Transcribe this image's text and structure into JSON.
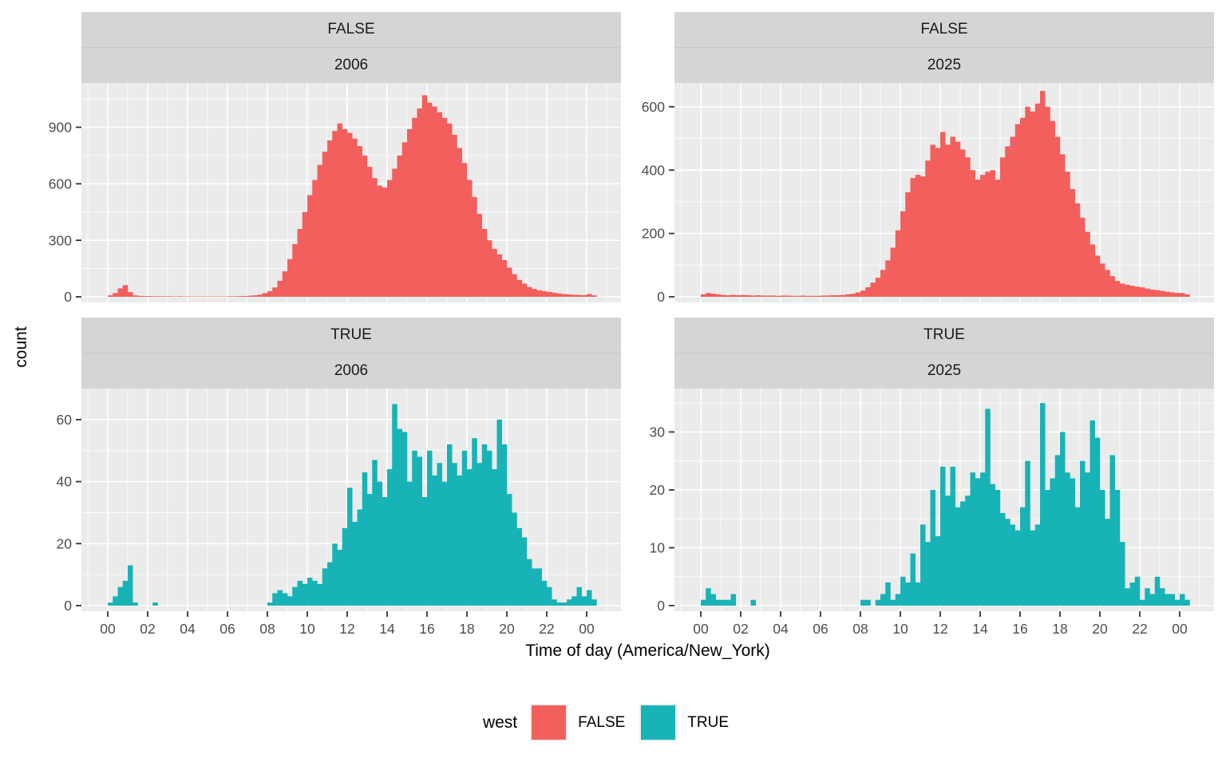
{
  "theme": {
    "panel_bg": "#EBEBEB",
    "strip_bg": "#D5D5D5",
    "grid_color": "#FFFFFF",
    "tick_mark_color": "#333333",
    "tick_label_color": "#4D4D4D",
    "false_color": "#F25F5C",
    "true_color": "#17B3B6"
  },
  "axes": {
    "x_title": "Time of day (America/New_York)",
    "y_title": "count"
  },
  "chart_data": {
    "type": "bar",
    "subtype": "faceted-histogram",
    "facet": {
      "row_variable": "west",
      "col_variable": "year"
    },
    "bin_width_hours": 0.25,
    "x": {
      "domain": [
        -1.32,
        25.72
      ],
      "tick_hours": [
        0,
        2,
        4,
        6,
        8,
        10,
        12,
        14,
        16,
        18,
        20,
        22,
        24
      ],
      "tick_labels": [
        "00",
        "02",
        "04",
        "06",
        "08",
        "10",
        "12",
        "14",
        "16",
        "18",
        "20",
        "22",
        "00"
      ],
      "label": "Time of day (America/New_York)"
    },
    "y": {
      "label": "count"
    },
    "legend": {
      "title": "west",
      "entries": [
        {
          "label": "FALSE",
          "color": "#F25F5C"
        },
        {
          "label": "TRUE",
          "color": "#17B3B6"
        }
      ]
    },
    "panels": [
      {
        "west": "FALSE",
        "year": "2006",
        "color": "#F25F5C",
        "yticks": [
          0,
          300,
          600,
          900
        ],
        "ytick_step": 300,
        "ymax_display": 1135,
        "bin_start_hour": 0,
        "counts": [
          8,
          20,
          45,
          62,
          25,
          8,
          5,
          4,
          4,
          3,
          3,
          3,
          3,
          2,
          3,
          2,
          2,
          2,
          2,
          2,
          2,
          2,
          2,
          2,
          3,
          3,
          4,
          4,
          6,
          8,
          12,
          20,
          30,
          50,
          85,
          135,
          200,
          280,
          360,
          450,
          540,
          620,
          700,
          770,
          830,
          880,
          920,
          890,
          870,
          840,
          800,
          750,
          690,
          630,
          590,
          580,
          620,
          680,
          750,
          820,
          890,
          950,
          1000,
          1070,
          1030,
          1010,
          980,
          950,
          920,
          860,
          790,
          710,
          620,
          530,
          440,
          360,
          300,
          255,
          225,
          195,
          155,
          120,
          90,
          70,
          52,
          42,
          35,
          30,
          26,
          22,
          18,
          15,
          13,
          11,
          10,
          9,
          15,
          8
        ]
      },
      {
        "west": "FALSE",
        "year": "2025",
        "color": "#F25F5C",
        "yticks": [
          0,
          200,
          400,
          600
        ],
        "ytick_step": 200,
        "ymax_display": 675,
        "bin_start_hour": 0,
        "counts": [
          8,
          12,
          10,
          8,
          6,
          5,
          6,
          5,
          6,
          5,
          4,
          5,
          4,
          4,
          4,
          3,
          4,
          4,
          3,
          3,
          4,
          3,
          3,
          3,
          4,
          4,
          5,
          5,
          6,
          8,
          10,
          14,
          20,
          30,
          45,
          60,
          85,
          115,
          155,
          210,
          270,
          330,
          375,
          385,
          380,
          430,
          480,
          470,
          520,
          480,
          505,
          490,
          465,
          440,
          400,
          370,
          385,
          395,
          400,
          370,
          440,
          475,
          505,
          545,
          565,
          600,
          585,
          610,
          650,
          600,
          555,
          505,
          450,
          395,
          340,
          295,
          250,
          205,
          165,
          130,
          105,
          85,
          65,
          50,
          42,
          38,
          35,
          32,
          30,
          26,
          23,
          21,
          19,
          16,
          14,
          12,
          12,
          8
        ]
      },
      {
        "west": "TRUE",
        "year": "2006",
        "color": "#17B3B6",
        "yticks": [
          0,
          20,
          40,
          60
        ],
        "ytick_step": 20,
        "ymax_display": 70,
        "bin_start_hour": 0,
        "counts": [
          1,
          3,
          6,
          8,
          13,
          1,
          0,
          0,
          0,
          1,
          0,
          0,
          0,
          0,
          0,
          0,
          0,
          0,
          0,
          0,
          0,
          0,
          0,
          0,
          0,
          0,
          0,
          0,
          0,
          0,
          0,
          0,
          1,
          4,
          5,
          4,
          3,
          6,
          8,
          7,
          9,
          8,
          7,
          12,
          14,
          20,
          18,
          25,
          38,
          27,
          31,
          43,
          36,
          47,
          40,
          35,
          44,
          65,
          57,
          56,
          40,
          50,
          48,
          35,
          50,
          42,
          46,
          40,
          52,
          46,
          42,
          50,
          44,
          54,
          46,
          52,
          50,
          44,
          60,
          52,
          36,
          30,
          25,
          22,
          15,
          12,
          12,
          8,
          6,
          2,
          1,
          1,
          2,
          3,
          6,
          3,
          5,
          2
        ]
      },
      {
        "west": "TRUE",
        "year": "2025",
        "color": "#17B3B6",
        "yticks": [
          0,
          10,
          20,
          30
        ],
        "ytick_step": 10,
        "ymax_display": 37.5,
        "bin_start_hour": 0,
        "counts": [
          1,
          3,
          2,
          1,
          1,
          1,
          2,
          0,
          0,
          0,
          1,
          0,
          0,
          0,
          0,
          0,
          0,
          0,
          0,
          0,
          0,
          0,
          0,
          0,
          0,
          0,
          0,
          0,
          0,
          0,
          0,
          0,
          1,
          1,
          0,
          1,
          2,
          4,
          1,
          2,
          5,
          4,
          9,
          4,
          14,
          11,
          20,
          12,
          24,
          19,
          24,
          17,
          18,
          19,
          23,
          22,
          23,
          34,
          21,
          20,
          16,
          15,
          14,
          13,
          17,
          25,
          13,
          14,
          35,
          20,
          22,
          26,
          30,
          23,
          22,
          17,
          25,
          23,
          32,
          29,
          20,
          15,
          26,
          20,
          11,
          3,
          4,
          5,
          1,
          3,
          2,
          5,
          3,
          2,
          2,
          1,
          2,
          1
        ]
      }
    ]
  }
}
